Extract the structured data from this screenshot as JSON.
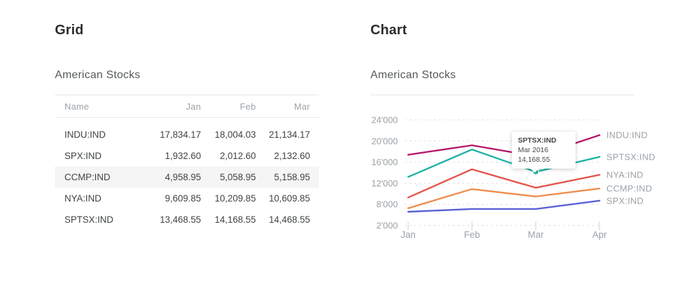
{
  "grid_panel": {
    "heading": "Grid",
    "subtitle": "American Stocks",
    "columns": [
      "Name",
      "Jan",
      "Feb",
      "Mar"
    ],
    "rows": [
      {
        "name": "INDU:IND",
        "jan": "17,834.17",
        "feb": "18,004.03",
        "mar": "21,134.17",
        "highlighted": false
      },
      {
        "name": "SPX:IND",
        "jan": "1,932.60",
        "feb": "2,012.60",
        "mar": "2,132.60",
        "highlighted": false
      },
      {
        "name": "CCMP:IND",
        "jan": "4,958.95",
        "feb": "5,058.95",
        "mar": "5,158.95",
        "highlighted": true
      },
      {
        "name": "NYA:IND",
        "jan": "9,609.85",
        "feb": "10,209.85",
        "mar": "10,609.85",
        "highlighted": false
      },
      {
        "name": "SPTSX:IND",
        "jan": "13,468.55",
        "feb": "14,168.55",
        "mar": "14,468.55",
        "highlighted": false
      }
    ]
  },
  "chart_panel": {
    "heading": "Chart",
    "subtitle": "American Stocks"
  },
  "chart_data": {
    "type": "line",
    "title": "American Stocks",
    "x": [
      "Jan",
      "Feb",
      "Mar",
      "Apr"
    ],
    "series": [
      {
        "name": "INDU:IND",
        "color": "#b5176b",
        "values": [
          17400,
          19200,
          17100,
          21134.17
        ]
      },
      {
        "name": "SPTSX:IND",
        "color": "#1fb2a6",
        "values": [
          13200,
          18400,
          14168.55,
          17000
        ]
      },
      {
        "name": "NYA:IND",
        "color": "#e2544a",
        "values": [
          9300,
          14650,
          11150,
          13600
        ]
      },
      {
        "name": "CCMP:IND",
        "color": "#ef8d4e",
        "values": [
          6900,
          10900,
          9500,
          11000
        ]
      },
      {
        "name": "SPX:IND",
        "color": "#5a60d6",
        "values": [
          5900,
          6700,
          6700,
          8700
        ]
      }
    ],
    "yticks": {
      "values": [
        2000,
        8000,
        12000,
        16000,
        20000,
        24000
      ],
      "labels": [
        "2'000",
        "8'000",
        "12'000",
        "16'000",
        "20'000",
        "24'000"
      ]
    },
    "ylim": [
      2000,
      24000
    ],
    "grid": "dashed horizontal gridlines",
    "legend_position": "right, labels at line ends",
    "tooltip": {
      "series": "SPTSX:IND",
      "x_label": "Mar 2016",
      "value": "14,168.55",
      "marker_color": "#1fb2a6"
    },
    "axis_text_color": "#9ba1a6",
    "gridline_color": "#e2e2e2"
  }
}
